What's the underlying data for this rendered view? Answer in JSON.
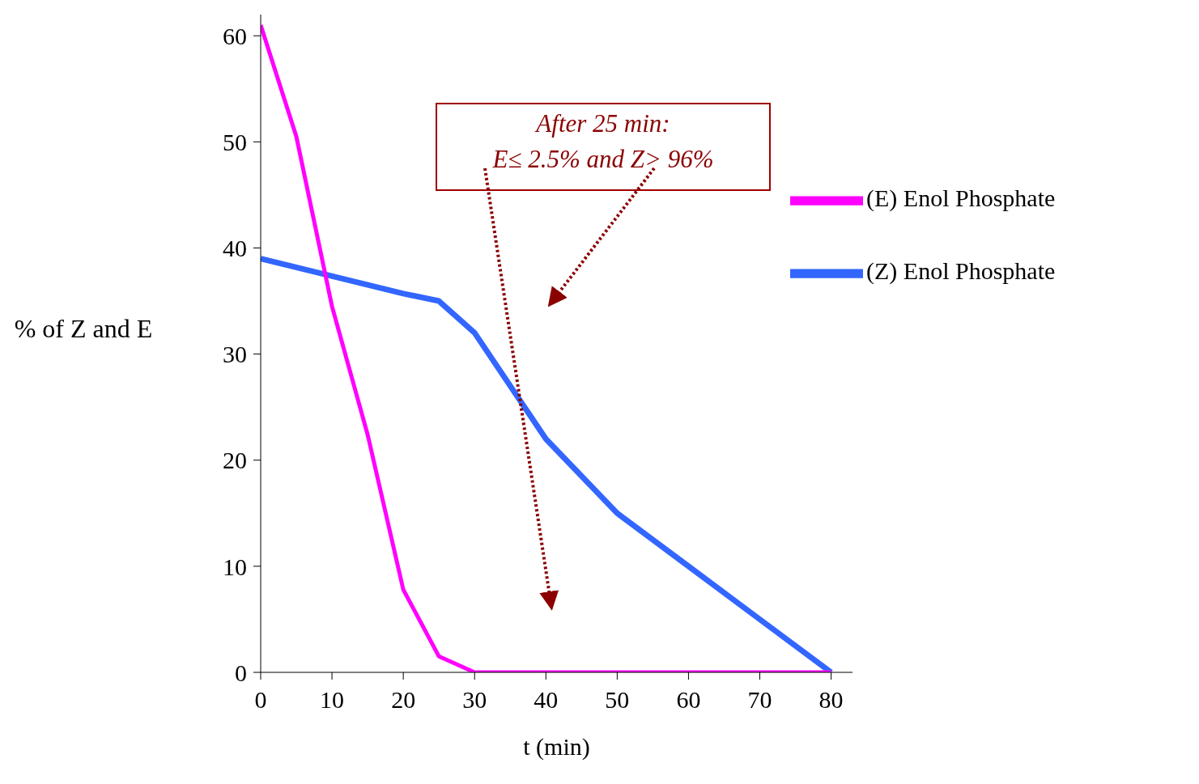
{
  "chart_data": {
    "type": "line",
    "xlabel": "t (min)",
    "ylabel": "% of Z and E",
    "x": [
      0,
      5,
      10,
      15,
      20,
      25,
      30,
      40,
      50,
      60,
      70,
      80
    ],
    "series": [
      {
        "name": "(Z) Enol Phosphate",
        "color": "#3366ff",
        "values": [
          39,
          null,
          null,
          null,
          35.7,
          35,
          32,
          22,
          15,
          10,
          5,
          0
        ]
      },
      {
        "name": "(E) Enol Phosphate",
        "color": "#ff00ff",
        "values": [
          61,
          50.5,
          34.5,
          22.4,
          7.8,
          1.5,
          0,
          0,
          0,
          0,
          0,
          0
        ]
      }
    ],
    "xlim": [
      0,
      83
    ],
    "xticks": [
      0,
      10,
      20,
      30,
      40,
      50,
      60,
      70,
      80
    ],
    "ylim": [
      0,
      62
    ],
    "yticks": [
      0,
      10,
      20,
      30,
      40,
      50,
      60
    ],
    "grid": false,
    "legend": "right",
    "marker": "none",
    "line_style": "solid",
    "annotations": [
      "After 25 min:\nE≤ 2.5% and Z> 96%"
    ]
  }
}
